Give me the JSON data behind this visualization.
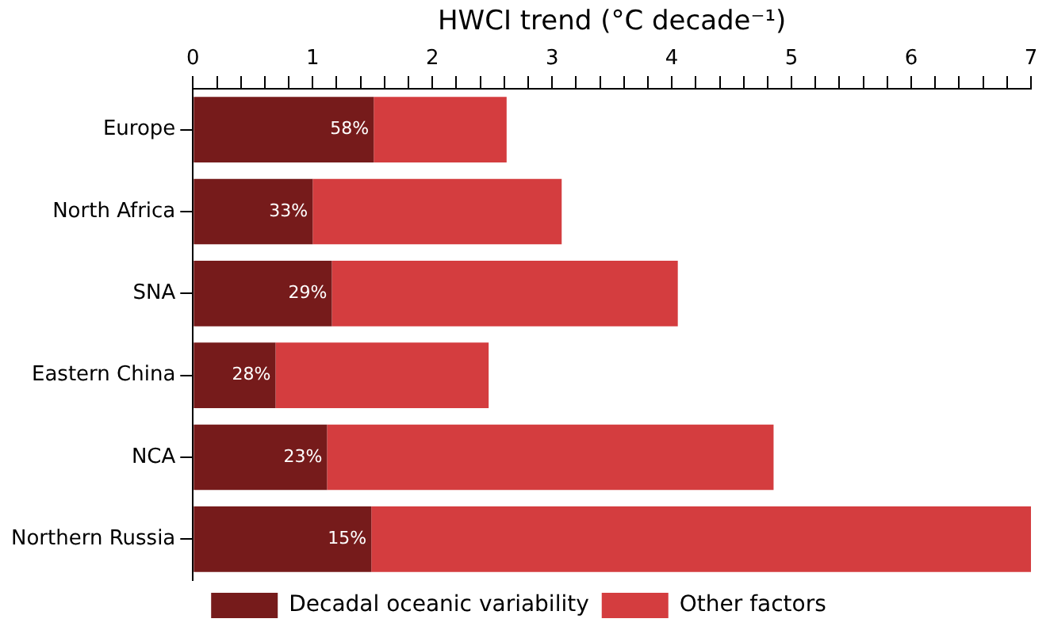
{
  "chart_data": {
    "type": "bar",
    "orientation": "horizontal",
    "stacked": true,
    "xlabel": "HWCI trend (°C decade⁻¹)",
    "categories": [
      "Europe",
      "North Africa",
      "SNA",
      "Eastern China",
      "NCA",
      "Northern Russia"
    ],
    "series": [
      {
        "name": "Decadal oceanic variability",
        "color": "#761b1b",
        "values": [
          1.51,
          1.0,
          1.16,
          0.69,
          1.12,
          1.49
        ]
      },
      {
        "name": "Other factors",
        "color": "#d43d3f",
        "values": [
          1.11,
          2.08,
          2.89,
          1.78,
          3.73,
          5.51
        ]
      }
    ],
    "xlim": [
      0,
      7
    ],
    "xticks": [
      0,
      {
        "value": 0.2,
        "label": null
      },
      {
        "value": 0.4,
        "label": null
      },
      {
        "value": 0.6,
        "label": null
      },
      {
        "value": 0.8,
        "label": null
      },
      1,
      {
        "value": 1.2,
        "label": null
      },
      {
        "value": 1.4,
        "label": null
      },
      {
        "value": 1.6,
        "label": null
      },
      {
        "value": 1.8,
        "label": null
      },
      2,
      {
        "value": 2.2,
        "label": null
      },
      {
        "value": 2.4,
        "label": null
      },
      {
        "value": 2.6,
        "label": null
      },
      {
        "value": 2.8,
        "label": null
      },
      3,
      {
        "value": 3.2,
        "label": null
      },
      {
        "value": 3.4,
        "label": null
      },
      {
        "value": 3.6,
        "label": null
      },
      {
        "value": 3.8,
        "label": null
      },
      4,
      {
        "value": 4.2,
        "label": null
      },
      {
        "value": 4.4,
        "label": null
      },
      {
        "value": 4.6,
        "label": null
      },
      {
        "value": 4.8,
        "label": null
      },
      5,
      {
        "value": 5.2,
        "label": null
      },
      {
        "value": 5.4,
        "label": null
      },
      {
        "value": 5.6,
        "label": null
      },
      {
        "value": 5.8,
        "label": null
      },
      6,
      {
        "value": 6.2,
        "label": null
      },
      {
        "value": 6.4,
        "label": null
      },
      {
        "value": 6.6,
        "label": null
      },
      {
        "value": 6.8,
        "label": null
      },
      7
    ],
    "annotations": [
      {
        "text": "58%",
        "x": 1.51,
        "y": "Europe"
      },
      {
        "text": "33%",
        "x": 1.0,
        "y": "North Africa"
      },
      {
        "text": "29%",
        "x": 1.16,
        "y": "SNA"
      },
      {
        "text": "28%",
        "x": 0.69,
        "y": "Eastern China"
      },
      {
        "text": "23%",
        "x": 1.12,
        "y": "NCA"
      },
      {
        "text": "15%",
        "x": 1.49,
        "y": "Northern Russia"
      }
    ],
    "grid": false,
    "legend": "bottom"
  }
}
